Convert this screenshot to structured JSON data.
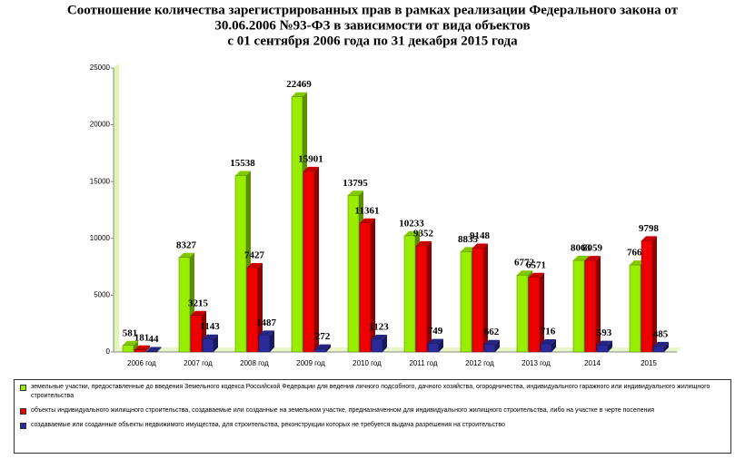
{
  "chart_data": {
    "type": "bar",
    "title": [
      "Соотношение количества зарегистрированных прав в рамках реализации Федерального закона от",
      "30.06.2006 №93-ФЗ в зависимости от вида объектов",
      "с 01 сентября 2006 года по 31 декабря  2015 года"
    ],
    "categories": [
      "2006 год",
      "2007 год",
      "2008 год",
      "2009 год",
      "2010 год",
      "2011 год",
      "2012 год",
      "2013 год",
      "2014",
      "2015"
    ],
    "series": [
      {
        "name": "земельные участки, предоставленные до введения Земельного кодекса Российской Федерации для ведения личного подсобного, дачного хозяйства, огородничества, индивидуального гаражного или индивидуального жилищного строительства",
        "color": "#99ee00",
        "values": [
          581,
          8327,
          15538,
          22469,
          13795,
          10233,
          8835,
          6772,
          8063,
          7661
        ]
      },
      {
        "name": "объекты индивидуального жилищного строительства, создаваемые или созданные на земельном участке, предназначенном для индивидуального жилищного строительства, либо на участке в черте поселения",
        "color": "#ee0000",
        "values": [
          181,
          3215,
          7427,
          15901,
          11361,
          9352,
          9148,
          6571,
          8059,
          9798
        ]
      },
      {
        "name": "создаваемые или созданные объекты недвижимого имущества, для строительства, реконструкции которых не требуется выдача разрешения на строительство",
        "color": "#2a2a9a",
        "values": [
          44,
          1143,
          1487,
          272,
          1123,
          749,
          662,
          716,
          593,
          485
        ]
      }
    ],
    "ylim": [
      0,
      25000
    ],
    "yticks": [
      0,
      5000,
      10000,
      15000,
      20000,
      25000
    ],
    "grid": false
  }
}
